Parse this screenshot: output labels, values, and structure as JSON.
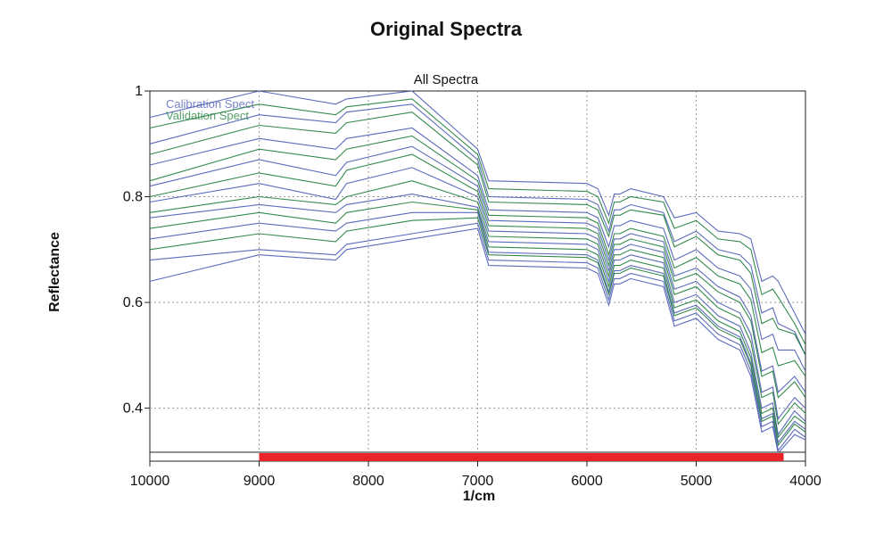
{
  "title": "Original Spectra",
  "chart_data": {
    "type": "line",
    "subtitle": "All Spectra",
    "xlabel": "1/cm",
    "ylabel": "Reflectance",
    "xlim": [
      10000,
      4000
    ],
    "ylim": [
      0.32,
      1.0
    ],
    "x_reversed": true,
    "grid": true,
    "x_ticks": [
      "10000",
      "9000",
      "8000",
      "7000",
      "6000",
      "5000",
      "4000"
    ],
    "y_ticks": [
      "0.4",
      "0.6",
      "0.8",
      "1"
    ],
    "legend": {
      "position": "top-left",
      "entries": [
        {
          "label": "Calibration Spect",
          "color": "#4a5bb5"
        },
        {
          "label": "Validation Spect",
          "color": "#1e7d3a"
        }
      ]
    },
    "selected_region": {
      "from": 9000,
      "to": 4200,
      "color": "#e8232a"
    },
    "spectrum_x": [
      10000,
      9000,
      8300,
      8200,
      7600,
      7000,
      6900,
      6000,
      5900,
      5800,
      5750,
      5700,
      5600,
      5300,
      5200,
      5000,
      4800,
      4600,
      4500,
      4400,
      4300,
      4250,
      4100,
      4000
    ],
    "series": [
      {
        "color": "#4a5bb5",
        "values": [
          0.95,
          1.0,
          0.975,
          0.985,
          1.0,
          0.89,
          0.83,
          0.825,
          0.815,
          0.765,
          0.805,
          0.805,
          0.815,
          0.8,
          0.76,
          0.77,
          0.735,
          0.73,
          0.72,
          0.64,
          0.65,
          0.64,
          0.58,
          0.54
        ]
      },
      {
        "color": "#1e7d3a",
        "values": [
          0.93,
          0.975,
          0.955,
          0.97,
          0.985,
          0.88,
          0.815,
          0.81,
          0.8,
          0.75,
          0.79,
          0.79,
          0.8,
          0.79,
          0.74,
          0.755,
          0.72,
          0.715,
          0.7,
          0.615,
          0.625,
          0.61,
          0.56,
          0.52
        ]
      },
      {
        "color": "#4a5bb5",
        "values": [
          0.9,
          0.955,
          0.94,
          0.96,
          0.975,
          0.87,
          0.8,
          0.795,
          0.785,
          0.735,
          0.775,
          0.775,
          0.785,
          0.77,
          0.715,
          0.735,
          0.7,
          0.69,
          0.67,
          0.58,
          0.59,
          0.56,
          0.545,
          0.5
        ]
      },
      {
        "color": "#1e7d3a",
        "values": [
          0.88,
          0.935,
          0.92,
          0.94,
          0.96,
          0.86,
          0.79,
          0.785,
          0.775,
          0.725,
          0.765,
          0.765,
          0.775,
          0.765,
          0.705,
          0.725,
          0.69,
          0.68,
          0.655,
          0.56,
          0.57,
          0.55,
          0.54,
          0.5
        ]
      },
      {
        "color": "#4a5bb5",
        "values": [
          0.86,
          0.91,
          0.89,
          0.91,
          0.93,
          0.84,
          0.775,
          0.77,
          0.76,
          0.705,
          0.745,
          0.745,
          0.755,
          0.74,
          0.68,
          0.7,
          0.665,
          0.65,
          0.625,
          0.53,
          0.54,
          0.51,
          0.51,
          0.47
        ]
      },
      {
        "color": "#1e7d3a",
        "values": [
          0.83,
          0.89,
          0.87,
          0.89,
          0.915,
          0.83,
          0.765,
          0.76,
          0.75,
          0.69,
          0.73,
          0.73,
          0.74,
          0.725,
          0.665,
          0.685,
          0.65,
          0.635,
          0.605,
          0.505,
          0.515,
          0.48,
          0.49,
          0.46
        ]
      },
      {
        "color": "#4a5bb5",
        "values": [
          0.82,
          0.87,
          0.84,
          0.865,
          0.895,
          0.82,
          0.755,
          0.75,
          0.74,
          0.68,
          0.72,
          0.72,
          0.73,
          0.715,
          0.65,
          0.665,
          0.63,
          0.61,
          0.575,
          0.47,
          0.48,
          0.43,
          0.46,
          0.43
        ]
      },
      {
        "color": "#1e7d3a",
        "values": [
          0.8,
          0.845,
          0.82,
          0.85,
          0.88,
          0.81,
          0.745,
          0.74,
          0.73,
          0.67,
          0.71,
          0.71,
          0.72,
          0.705,
          0.64,
          0.655,
          0.62,
          0.6,
          0.565,
          0.46,
          0.47,
          0.42,
          0.45,
          0.42
        ]
      },
      {
        "color": "#4a5bb5",
        "values": [
          0.79,
          0.825,
          0.795,
          0.825,
          0.855,
          0.8,
          0.735,
          0.73,
          0.72,
          0.66,
          0.7,
          0.7,
          0.71,
          0.695,
          0.625,
          0.64,
          0.6,
          0.58,
          0.54,
          0.43,
          0.44,
          0.38,
          0.42,
          0.4
        ]
      },
      {
        "color": "#1e7d3a",
        "values": [
          0.77,
          0.8,
          0.785,
          0.8,
          0.83,
          0.79,
          0.725,
          0.72,
          0.71,
          0.65,
          0.69,
          0.69,
          0.7,
          0.685,
          0.615,
          0.63,
          0.59,
          0.57,
          0.525,
          0.42,
          0.43,
          0.37,
          0.41,
          0.39
        ]
      },
      {
        "color": "#4a5bb5",
        "values": [
          0.76,
          0.785,
          0.77,
          0.785,
          0.805,
          0.78,
          0.715,
          0.71,
          0.7,
          0.64,
          0.68,
          0.68,
          0.69,
          0.675,
          0.6,
          0.615,
          0.575,
          0.555,
          0.505,
          0.4,
          0.41,
          0.35,
          0.395,
          0.375
        ]
      },
      {
        "color": "#1e7d3a",
        "values": [
          0.74,
          0.77,
          0.75,
          0.77,
          0.79,
          0.775,
          0.705,
          0.7,
          0.69,
          0.63,
          0.67,
          0.67,
          0.68,
          0.665,
          0.59,
          0.605,
          0.565,
          0.545,
          0.495,
          0.39,
          0.4,
          0.345,
          0.385,
          0.37
        ]
      },
      {
        "color": "#4a5bb5",
        "values": [
          0.72,
          0.75,
          0.735,
          0.75,
          0.77,
          0.77,
          0.695,
          0.69,
          0.68,
          0.62,
          0.66,
          0.66,
          0.67,
          0.655,
          0.58,
          0.595,
          0.555,
          0.535,
          0.485,
          0.38,
          0.39,
          0.335,
          0.375,
          0.36
        ]
      },
      {
        "color": "#1e7d3a",
        "values": [
          0.7,
          0.73,
          0.715,
          0.735,
          0.755,
          0.76,
          0.69,
          0.685,
          0.675,
          0.615,
          0.655,
          0.655,
          0.665,
          0.65,
          0.575,
          0.59,
          0.55,
          0.53,
          0.48,
          0.375,
          0.385,
          0.33,
          0.37,
          0.355
        ]
      },
      {
        "color": "#4a5bb5",
        "values": [
          0.68,
          0.7,
          0.69,
          0.71,
          0.73,
          0.75,
          0.68,
          0.675,
          0.665,
          0.605,
          0.645,
          0.645,
          0.655,
          0.64,
          0.565,
          0.58,
          0.54,
          0.52,
          0.47,
          0.365,
          0.375,
          0.32,
          0.36,
          0.345
        ]
      },
      {
        "color": "#4a5bb5",
        "values": [
          0.64,
          0.69,
          0.68,
          0.7,
          0.72,
          0.74,
          0.67,
          0.665,
          0.655,
          0.595,
          0.635,
          0.635,
          0.645,
          0.63,
          0.555,
          0.57,
          0.53,
          0.51,
          0.46,
          0.355,
          0.365,
          0.315,
          0.35,
          0.34
        ]
      }
    ]
  }
}
